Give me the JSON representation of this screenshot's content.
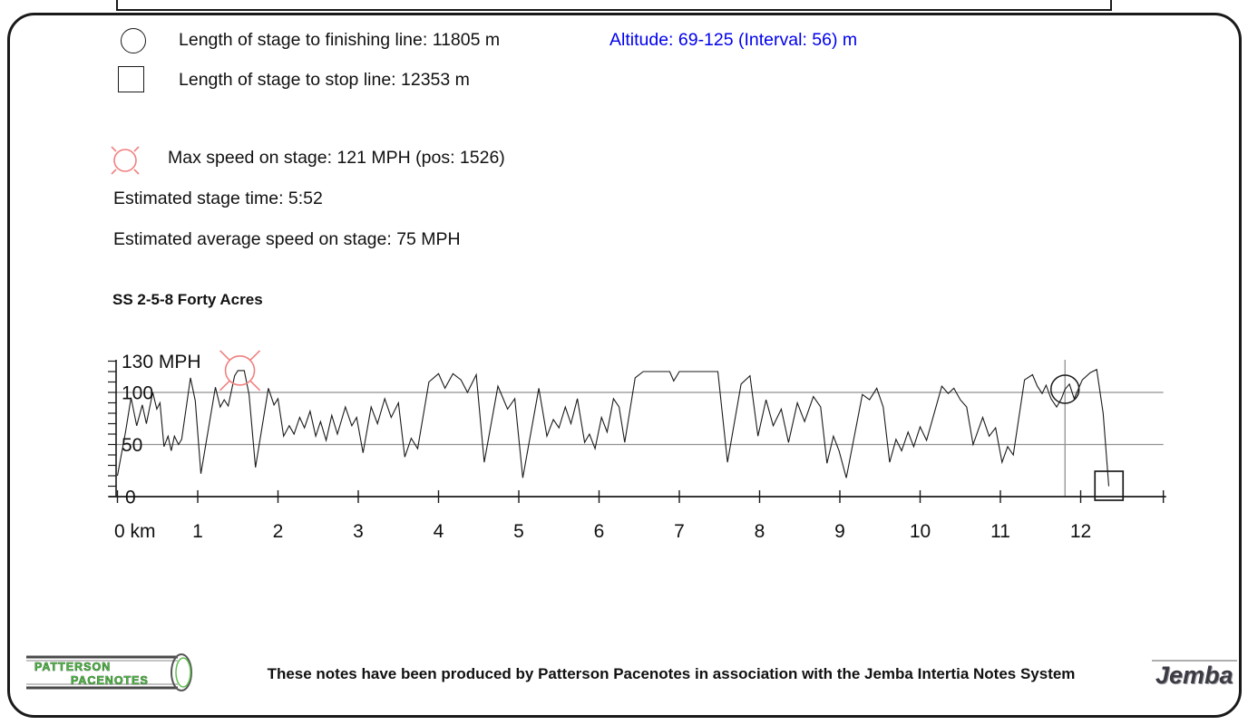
{
  "legend": {
    "finish_label": "Length of stage to finishing line: 11805 m",
    "stop_label": "Length of stage to stop line: 12353 m",
    "altitude_label": "Altitude: 69-125 (Interval: 56) m",
    "max_speed_label": "Max speed on stage: 121 MPH (pos: 1526)"
  },
  "stats": {
    "stage_time": "Estimated stage time: 5:52",
    "avg_speed": "Estimated average speed on stage: 75 MPH"
  },
  "stage_title": "SS 2-5-8 Forty Acres",
  "footer": {
    "credit": "These notes have been produced by Patterson Pacenotes in association with the Jemba Intertia Notes System",
    "patterson_line1": "PATTERSON",
    "patterson_line2": "PACENOTES",
    "jemba": "Jemba"
  },
  "colors": {
    "trace": "#1a1a1a",
    "grid": "#909090",
    "max_marker_red": "#f08080",
    "altitude_blue": "#0000ee"
  },
  "chart_data": {
    "type": "line",
    "title": "SS 2-5-8 Forty Acres",
    "xlabel": "km",
    "ylabel": "MPH",
    "ylim": [
      0,
      130
    ],
    "y_minor_tick_step": 10,
    "gridlines_mph": [
      50,
      100
    ],
    "x_axis_end_km": 13.03,
    "x_ticks_km": [
      0,
      1,
      2,
      3,
      4,
      5,
      6,
      7,
      8,
      9,
      10,
      11,
      12
    ],
    "x_tick_labels": [
      "0 km",
      "1",
      "2",
      "3",
      "4",
      "5",
      "6",
      "7",
      "8",
      "9",
      "10",
      "11",
      "12"
    ],
    "y_labels": [
      {
        "value": 130,
        "label": "130 MPH"
      },
      {
        "value": 100,
        "label": "100"
      },
      {
        "value": 50,
        "label": "50"
      },
      {
        "value": 0,
        "label": "0"
      }
    ],
    "markers": {
      "max_speed": {
        "km": 1.526,
        "mph": 121,
        "shape": "red-crosshair-circle"
      },
      "finish_line": {
        "km": 11.805,
        "mph": 103,
        "shape": "black-circle",
        "vline": true
      },
      "stop_line": {
        "km": 12.353,
        "mph": 10,
        "shape": "black-square"
      }
    },
    "points": [
      [
        0.0,
        20
      ],
      [
        0.1,
        62
      ],
      [
        0.17,
        95
      ],
      [
        0.24,
        68
      ],
      [
        0.31,
        88
      ],
      [
        0.36,
        70
      ],
      [
        0.44,
        100
      ],
      [
        0.49,
        84
      ],
      [
        0.53,
        90
      ],
      [
        0.58,
        48
      ],
      [
        0.63,
        58
      ],
      [
        0.67,
        44
      ],
      [
        0.71,
        58
      ],
      [
        0.76,
        50
      ],
      [
        0.8,
        55
      ],
      [
        0.91,
        114
      ],
      [
        0.97,
        92
      ],
      [
        1.04,
        22
      ],
      [
        1.22,
        105
      ],
      [
        1.28,
        86
      ],
      [
        1.33,
        93
      ],
      [
        1.38,
        87
      ],
      [
        1.46,
        116
      ],
      [
        1.5,
        121
      ],
      [
        1.58,
        121
      ],
      [
        1.64,
        98
      ],
      [
        1.72,
        28
      ],
      [
        1.88,
        104
      ],
      [
        1.95,
        88
      ],
      [
        2.0,
        94
      ],
      [
        2.07,
        58
      ],
      [
        2.14,
        68
      ],
      [
        2.2,
        60
      ],
      [
        2.27,
        76
      ],
      [
        2.33,
        66
      ],
      [
        2.4,
        82
      ],
      [
        2.47,
        58
      ],
      [
        2.53,
        72
      ],
      [
        2.6,
        54
      ],
      [
        2.67,
        78
      ],
      [
        2.74,
        60
      ],
      [
        2.84,
        86
      ],
      [
        2.92,
        68
      ],
      [
        2.98,
        76
      ],
      [
        3.06,
        42
      ],
      [
        3.16,
        86
      ],
      [
        3.24,
        70
      ],
      [
        3.33,
        94
      ],
      [
        3.41,
        76
      ],
      [
        3.5,
        90
      ],
      [
        3.58,
        38
      ],
      [
        3.66,
        56
      ],
      [
        3.74,
        46
      ],
      [
        3.88,
        110
      ],
      [
        4.0,
        118
      ],
      [
        4.08,
        104
      ],
      [
        4.18,
        118
      ],
      [
        4.28,
        112
      ],
      [
        4.36,
        100
      ],
      [
        4.47,
        117
      ],
      [
        4.57,
        33
      ],
      [
        4.74,
        106
      ],
      [
        4.86,
        84
      ],
      [
        4.95,
        94
      ],
      [
        5.05,
        18
      ],
      [
        5.25,
        104
      ],
      [
        5.35,
        58
      ],
      [
        5.43,
        74
      ],
      [
        5.5,
        66
      ],
      [
        5.58,
        86
      ],
      [
        5.65,
        70
      ],
      [
        5.73,
        94
      ],
      [
        5.82,
        52
      ],
      [
        5.88,
        60
      ],
      [
        5.95,
        46
      ],
      [
        6.03,
        76
      ],
      [
        6.1,
        62
      ],
      [
        6.18,
        94
      ],
      [
        6.25,
        86
      ],
      [
        6.32,
        52
      ],
      [
        6.45,
        114
      ],
      [
        6.55,
        120
      ],
      [
        6.88,
        120
      ],
      [
        6.93,
        111
      ],
      [
        7.0,
        120
      ],
      [
        7.48,
        120
      ],
      [
        7.6,
        33
      ],
      [
        7.77,
        108
      ],
      [
        7.88,
        116
      ],
      [
        7.98,
        58
      ],
      [
        8.08,
        93
      ],
      [
        8.17,
        68
      ],
      [
        8.27,
        84
      ],
      [
        8.36,
        52
      ],
      [
        8.47,
        90
      ],
      [
        8.56,
        72
      ],
      [
        8.67,
        96
      ],
      [
        8.76,
        86
      ],
      [
        8.84,
        32
      ],
      [
        8.92,
        58
      ],
      [
        8.99,
        44
      ],
      [
        9.08,
        18
      ],
      [
        9.28,
        98
      ],
      [
        9.37,
        93
      ],
      [
        9.46,
        104
      ],
      [
        9.54,
        86
      ],
      [
        9.62,
        33
      ],
      [
        9.7,
        55
      ],
      [
        9.77,
        44
      ],
      [
        9.85,
        62
      ],
      [
        9.92,
        48
      ],
      [
        10.0,
        67
      ],
      [
        10.08,
        54
      ],
      [
        10.27,
        106
      ],
      [
        10.35,
        99
      ],
      [
        10.42,
        104
      ],
      [
        10.5,
        93
      ],
      [
        10.58,
        86
      ],
      [
        10.66,
        50
      ],
      [
        10.78,
        76
      ],
      [
        10.86,
        58
      ],
      [
        10.94,
        66
      ],
      [
        11.02,
        33
      ],
      [
        11.09,
        48
      ],
      [
        11.16,
        40
      ],
      [
        11.3,
        112
      ],
      [
        11.4,
        117
      ],
      [
        11.46,
        106
      ],
      [
        11.52,
        99
      ],
      [
        11.57,
        107
      ],
      [
        11.63,
        94
      ],
      [
        11.7,
        86
      ],
      [
        11.76,
        94
      ],
      [
        11.805,
        103
      ],
      [
        11.86,
        108
      ],
      [
        11.92,
        94
      ],
      [
        12.02,
        112
      ],
      [
        12.12,
        119
      ],
      [
        12.2,
        122
      ],
      [
        12.28,
        80
      ],
      [
        12.35,
        10
      ]
    ]
  }
}
